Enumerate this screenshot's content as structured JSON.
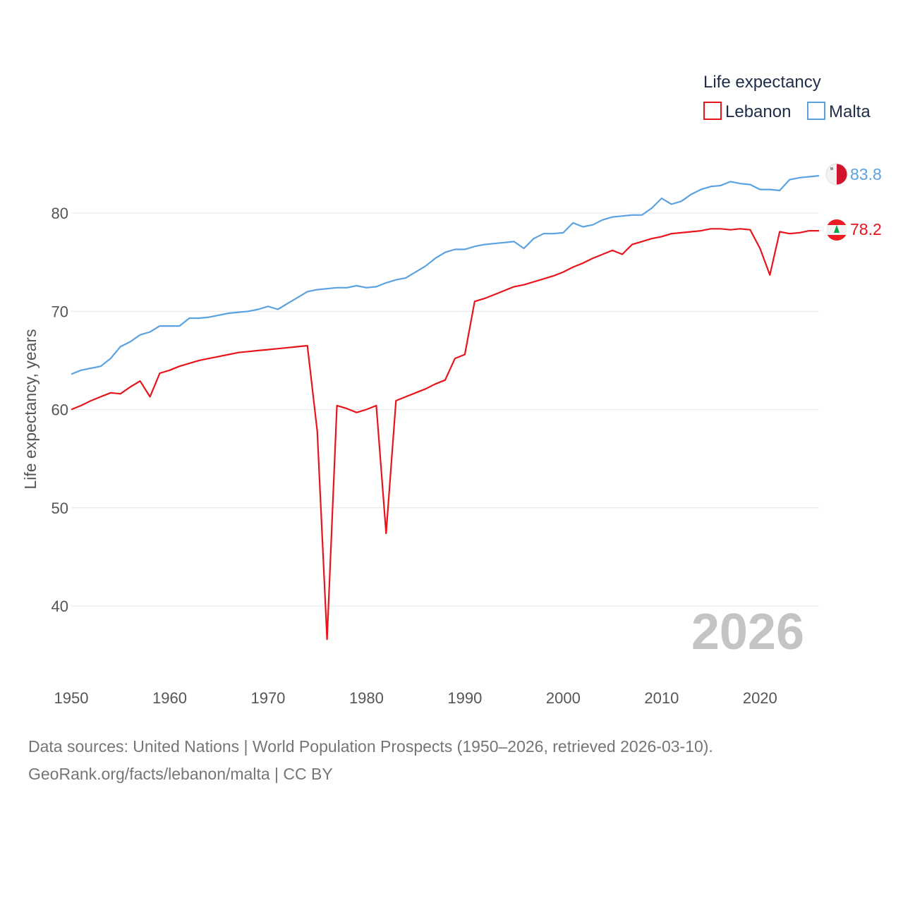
{
  "chart_data": {
    "type": "line",
    "title": "Life expectancy",
    "xlabel": "",
    "ylabel": "Life expectancy, years",
    "xlim": [
      1950,
      2026
    ],
    "ylim": [
      35,
      87
    ],
    "x_ticks": [
      "1950",
      "1960",
      "1970",
      "1980",
      "1990",
      "2000",
      "2010",
      "2020"
    ],
    "y_ticks": [
      "40",
      "50",
      "60",
      "70",
      "80"
    ],
    "year_label": "2026",
    "legend_position": "top-right",
    "series": [
      {
        "name": "Lebanon",
        "color": "#e8141c",
        "end_label": "78.2",
        "flag": "lebanon-flag-icon",
        "x": [
          1950,
          1951,
          1952,
          1953,
          1954,
          1955,
          1956,
          1957,
          1958,
          1959,
          1960,
          1961,
          1962,
          1963,
          1964,
          1965,
          1966,
          1967,
          1968,
          1969,
          1970,
          1971,
          1972,
          1973,
          1974,
          1975,
          1976,
          1977,
          1978,
          1979,
          1980,
          1981,
          1982,
          1983,
          1984,
          1985,
          1986,
          1987,
          1988,
          1989,
          1990,
          1991,
          1992,
          1993,
          1994,
          1995,
          1996,
          1997,
          1998,
          1999,
          2000,
          2001,
          2002,
          2003,
          2004,
          2005,
          2006,
          2007,
          2008,
          2009,
          2010,
          2011,
          2012,
          2013,
          2014,
          2015,
          2016,
          2017,
          2018,
          2019,
          2020,
          2021,
          2022,
          2023,
          2024,
          2025,
          2026
        ],
        "values": [
          60.0,
          60.4,
          60.9,
          61.3,
          61.7,
          61.6,
          62.3,
          62.9,
          61.3,
          63.7,
          64.0,
          64.4,
          64.7,
          65.0,
          65.2,
          65.4,
          65.6,
          65.8,
          65.9,
          66.0,
          66.1,
          66.2,
          66.3,
          66.4,
          66.5,
          57.8,
          36.6,
          60.4,
          60.1,
          59.7,
          60.0,
          60.4,
          47.4,
          60.9,
          61.3,
          61.7,
          62.1,
          62.6,
          63.0,
          65.2,
          65.6,
          71.0,
          71.3,
          71.7,
          72.1,
          72.5,
          72.7,
          73.0,
          73.3,
          73.6,
          74.0,
          74.5,
          74.9,
          75.4,
          75.8,
          76.2,
          75.8,
          76.8,
          77.1,
          77.4,
          77.6,
          77.9,
          78.0,
          78.1,
          78.2,
          78.4,
          78.4,
          78.3,
          78.4,
          78.3,
          76.4,
          73.7,
          78.1,
          77.9,
          78.0,
          78.2,
          78.2
        ]
      },
      {
        "name": "Malta",
        "color": "#5aa2e0",
        "end_label": "83.8",
        "flag": "malta-flag-icon",
        "x": [
          1950,
          1951,
          1952,
          1953,
          1954,
          1955,
          1956,
          1957,
          1958,
          1959,
          1960,
          1961,
          1962,
          1963,
          1964,
          1965,
          1966,
          1967,
          1968,
          1969,
          1970,
          1971,
          1972,
          1973,
          1974,
          1975,
          1976,
          1977,
          1978,
          1979,
          1980,
          1981,
          1982,
          1983,
          1984,
          1985,
          1986,
          1987,
          1988,
          1989,
          1990,
          1991,
          1992,
          1993,
          1994,
          1995,
          1996,
          1997,
          1998,
          1999,
          2000,
          2001,
          2002,
          2003,
          2004,
          2005,
          2006,
          2007,
          2008,
          2009,
          2010,
          2011,
          2012,
          2013,
          2014,
          2015,
          2016,
          2017,
          2018,
          2019,
          2020,
          2021,
          2022,
          2023,
          2024,
          2025,
          2026
        ],
        "values": [
          63.6,
          64.0,
          64.2,
          64.4,
          65.2,
          66.4,
          66.9,
          67.6,
          67.9,
          68.5,
          68.5,
          68.5,
          69.3,
          69.3,
          69.4,
          69.6,
          69.8,
          69.9,
          70.0,
          70.2,
          70.5,
          70.2,
          70.8,
          71.4,
          72.0,
          72.2,
          72.3,
          72.4,
          72.4,
          72.6,
          72.4,
          72.5,
          72.9,
          73.2,
          73.4,
          74.0,
          74.6,
          75.4,
          76.0,
          76.3,
          76.3,
          76.6,
          76.8,
          76.9,
          77.0,
          77.1,
          76.4,
          77.4,
          77.9,
          77.9,
          78.0,
          79.0,
          78.6,
          78.8,
          79.3,
          79.6,
          79.7,
          79.8,
          79.8,
          80.5,
          81.5,
          80.9,
          81.2,
          81.9,
          82.4,
          82.7,
          82.8,
          83.2,
          83.0,
          82.9,
          82.4,
          82.4,
          82.3,
          83.4,
          83.6,
          83.7,
          83.8
        ]
      }
    ]
  },
  "footer": {
    "line1": "Data sources: United Nations | World Population Prospects (1950–2026, retrieved 2026-03-10).",
    "line2": "GeoRank.org/facts/lebanon/malta | CC BY"
  }
}
